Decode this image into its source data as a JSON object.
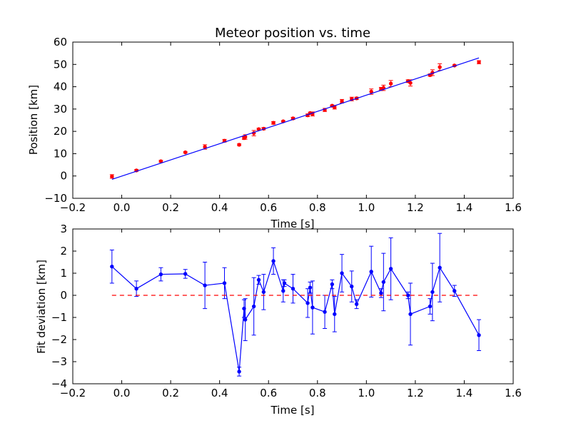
{
  "chart_data": [
    {
      "type": "scatter",
      "title": "Meteor position vs. time",
      "xlabel": "Time [s]",
      "ylabel": "Position [km]",
      "xlim": [
        -0.2,
        1.6
      ],
      "ylim": [
        -10,
        60
      ],
      "xticks": [
        "−0.2",
        "0.0",
        "0.2",
        "0.4",
        "0.6",
        "0.8",
        "1.0",
        "1.2",
        "1.4",
        "1.6"
      ],
      "yticks": [
        "−10",
        "0",
        "10",
        "20",
        "30",
        "40",
        "50",
        "60"
      ],
      "grid": false,
      "series": [
        {
          "color": "#ff0000",
          "marker": "point",
          "x": [
            -0.04,
            0.06,
            0.16,
            0.26,
            0.34,
            0.42,
            0.48,
            0.5,
            0.505,
            0.54,
            0.56,
            0.58,
            0.62,
            0.66,
            0.7,
            0.76,
            0.77,
            0.78,
            0.83,
            0.86,
            0.87,
            0.9,
            0.94,
            0.96,
            1.02,
            1.06,
            1.07,
            1.1,
            1.17,
            1.18,
            1.26,
            1.27,
            1.3,
            1.36,
            1.46
          ],
          "y": [
            -0.2,
            2.5,
            6.6,
            10.6,
            13.0,
            15.8,
            14.0,
            17.0,
            17.5,
            19.2,
            21.0,
            21.2,
            23.8,
            24.5,
            25.8,
            27.2,
            28.2,
            27.8,
            29.6,
            31.5,
            30.8,
            33.5,
            34.5,
            34.8,
            37.8,
            39.0,
            39.5,
            41.4,
            42.5,
            41.7,
            45.2,
            46.3,
            48.8,
            49.5,
            51.0
          ],
          "yerr": [
            0.8,
            0.4,
            0.4,
            0.3,
            1.0,
            0.6,
            0.4,
            0.6,
            1.0,
            1.2,
            0.4,
            0.5,
            0.6,
            0.3,
            0.5,
            0.6,
            0.4,
            0.9,
            0.7,
            0.3,
            0.8,
            0.8,
            0.8,
            0.5,
            1.2,
            0.7,
            1.2,
            1.4,
            0.6,
            1.4,
            0.5,
            1.3,
            1.5,
            0.3,
            0.7
          ]
        },
        {
          "type": "line",
          "color": "#0000ff",
          "x": [
            -0.04,
            1.46
          ],
          "y": [
            -1.5,
            52.9
          ]
        }
      ]
    },
    {
      "type": "line",
      "xlabel": "Time [s]",
      "ylabel": "Fit deviation [km]",
      "xlim": [
        -0.2,
        1.6
      ],
      "ylim": [
        -4,
        3
      ],
      "xticks": [
        "−0.2",
        "0.0",
        "0.2",
        "0.4",
        "0.6",
        "0.8",
        "1.0",
        "1.2",
        "1.4",
        "1.6"
      ],
      "yticks": [
        "−4",
        "−3",
        "−2",
        "−1",
        "0",
        "1",
        "2",
        "3"
      ],
      "grid": false,
      "series": [
        {
          "color": "#0000ff",
          "marker": "point",
          "x": [
            -0.04,
            0.06,
            0.16,
            0.26,
            0.34,
            0.42,
            0.48,
            0.5,
            0.505,
            0.54,
            0.56,
            0.58,
            0.62,
            0.66,
            0.665,
            0.7,
            0.76,
            0.77,
            0.78,
            0.83,
            0.86,
            0.87,
            0.9,
            0.94,
            0.96,
            1.02,
            1.06,
            1.07,
            1.1,
            1.17,
            1.18,
            1.26,
            1.27,
            1.3,
            1.36,
            1.46
          ],
          "y": [
            1.3,
            0.3,
            0.95,
            0.97,
            0.45,
            0.55,
            -3.45,
            -0.6,
            -1.1,
            -0.5,
            0.7,
            0.15,
            1.55,
            0.2,
            0.55,
            0.3,
            -0.35,
            0.35,
            -0.55,
            -0.75,
            0.5,
            -0.85,
            1.0,
            0.4,
            -0.4,
            1.07,
            0.1,
            0.6,
            1.2,
            0.0,
            -0.85,
            -0.5,
            0.15,
            1.25,
            0.2,
            -1.8
          ],
          "yerr": [
            0.75,
            0.35,
            0.3,
            0.2,
            1.05,
            0.7,
            0.2,
            0.4,
            0.95,
            1.3,
            0.2,
            0.8,
            0.6,
            0.5,
            0.15,
            0.65,
            0.65,
            0.25,
            1.2,
            0.75,
            0.2,
            0.8,
            0.85,
            0.7,
            0.2,
            1.15,
            0.2,
            1.3,
            1.4,
            0.15,
            1.4,
            0.35,
            1.3,
            1.55,
            0.25,
            0.7
          ]
        },
        {
          "type": "line",
          "style": "dashed",
          "color": "#ff0000",
          "x": [
            -0.04,
            1.46
          ],
          "y": [
            0,
            0
          ]
        }
      ]
    }
  ]
}
